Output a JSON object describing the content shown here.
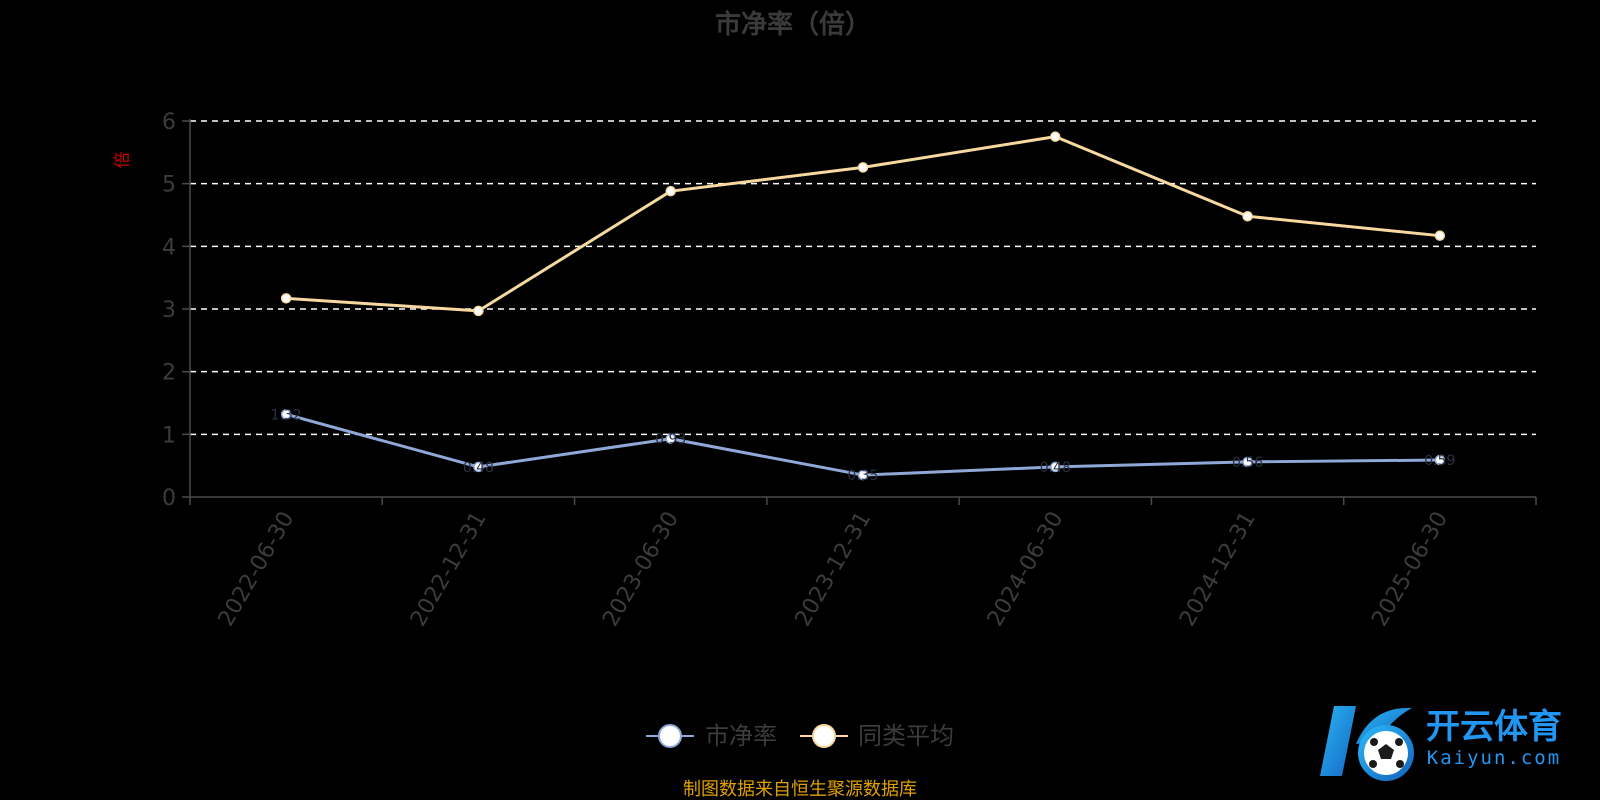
{
  "chart_data": {
    "type": "line",
    "title": "市净率（倍）",
    "ylabel": "倍",
    "ylim": [
      0,
      6
    ],
    "yticks": [
      0,
      1,
      2,
      3,
      4,
      5,
      6
    ],
    "grid": true,
    "legend_position": "bottom",
    "categories": [
      "2022-06-30",
      "2022-12-31",
      "2023-06-30",
      "2023-12-31",
      "2024-06-30",
      "2024-12-31",
      "2025-06-30"
    ],
    "series": [
      {
        "name": "市净率",
        "color": "#8fa8d8",
        "values": [
          1.32,
          0.48,
          0.93,
          0.35,
          0.48,
          0.56,
          0.59
        ],
        "labels": [
          "1.32",
          "0.48",
          "0.93",
          "0.35",
          "0.48",
          "0.56",
          "0.59"
        ]
      },
      {
        "name": "同类平均",
        "color": "#f7d9a0",
        "values": [
          3.17,
          2.97,
          4.88,
          5.26,
          5.75,
          4.48,
          4.17
        ]
      }
    ],
    "source": "制图数据来自恒生聚源数据库"
  },
  "watermark": {
    "brand": "开云体育",
    "domain": "Kaiyun.com"
  }
}
